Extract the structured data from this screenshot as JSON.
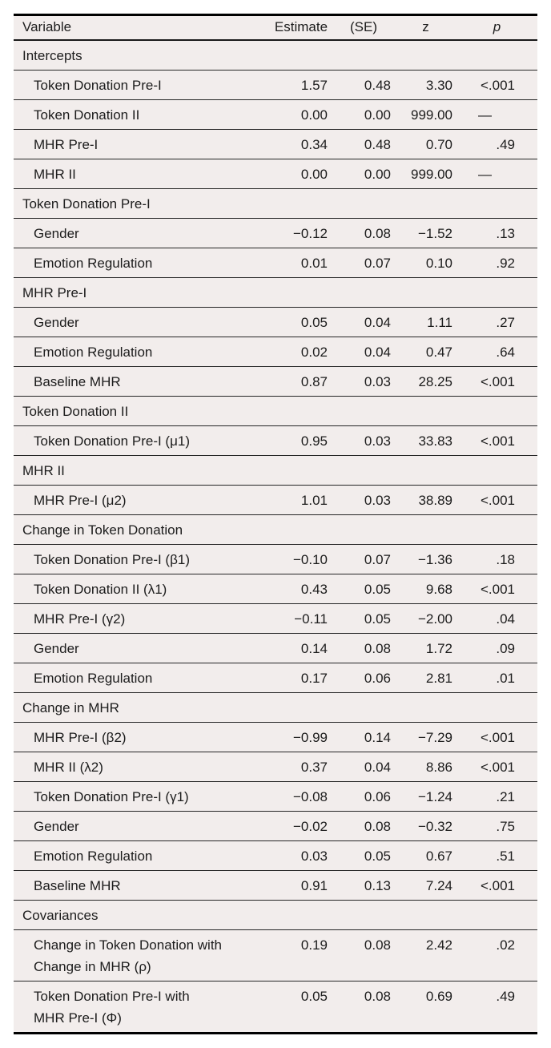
{
  "table": {
    "style": {
      "row_background": "#f2edec",
      "rule_color": "#000000",
      "separator_color": "#262626",
      "text_color": "#1c1c1c"
    },
    "columns": [
      {
        "key": "variable",
        "label": "Variable"
      },
      {
        "key": "estimate",
        "label": "Estimate"
      },
      {
        "key": "se",
        "label": "(SE)"
      },
      {
        "key": "z",
        "label": "z"
      },
      {
        "key": "p",
        "label": "p"
      }
    ],
    "rows": [
      {
        "type": "section",
        "label": "Intercepts"
      },
      {
        "type": "data",
        "label": "Token Donation Pre-I",
        "estimate": "1.57",
        "se": "0.48",
        "z": "3.30",
        "p": "<.001"
      },
      {
        "type": "data",
        "label": "Token Donation II",
        "estimate": "0.00",
        "se": "0.00",
        "z": "999.00",
        "p": "—"
      },
      {
        "type": "data",
        "label": "MHR Pre-I",
        "estimate": "0.34",
        "se": "0.48",
        "z": "0.70",
        "p": ".49"
      },
      {
        "type": "data",
        "label": "MHR II",
        "estimate": "0.00",
        "se": "0.00",
        "z": "999.00",
        "p": "—"
      },
      {
        "type": "section",
        "label": "Token Donation Pre-I"
      },
      {
        "type": "data",
        "label": "Gender",
        "estimate": "−0.12",
        "se": "0.08",
        "z": "−1.52",
        "p": ".13"
      },
      {
        "type": "data",
        "label": "Emotion Regulation",
        "estimate": "0.01",
        "se": "0.07",
        "z": "0.10",
        "p": ".92"
      },
      {
        "type": "section",
        "label": "MHR Pre-I"
      },
      {
        "type": "data",
        "label": "Gender",
        "estimate": "0.05",
        "se": "0.04",
        "z": "1.11",
        "p": ".27"
      },
      {
        "type": "data",
        "label": "Emotion Regulation",
        "estimate": "0.02",
        "se": "0.04",
        "z": "0.47",
        "p": ".64"
      },
      {
        "type": "data",
        "label": "Baseline MHR",
        "estimate": "0.87",
        "se": "0.03",
        "z": "28.25",
        "p": "<.001"
      },
      {
        "type": "section",
        "label": "Token Donation II"
      },
      {
        "type": "data",
        "label": "Token Donation Pre-I (μ1)",
        "estimate": "0.95",
        "se": "0.03",
        "z": "33.83",
        "p": "<.001"
      },
      {
        "type": "section",
        "label": "MHR II"
      },
      {
        "type": "data",
        "label": "MHR Pre-I (μ2)",
        "estimate": "1.01",
        "se": "0.03",
        "z": "38.89",
        "p": "<.001"
      },
      {
        "type": "section",
        "label": "Change in Token Donation"
      },
      {
        "type": "data",
        "label": "Token Donation Pre-I (β1)",
        "estimate": "−0.10",
        "se": "0.07",
        "z": "−1.36",
        "p": ".18"
      },
      {
        "type": "data",
        "label": "Token Donation II (λ1)",
        "estimate": "0.43",
        "se": "0.05",
        "z": "9.68",
        "p": "<.001"
      },
      {
        "type": "data",
        "label": "MHR Pre-I (γ2)",
        "estimate": "−0.11",
        "se": "0.05",
        "z": "−2.00",
        "p": ".04"
      },
      {
        "type": "data",
        "label": "Gender",
        "estimate": "0.14",
        "se": "0.08",
        "z": "1.72",
        "p": ".09"
      },
      {
        "type": "data",
        "label": "Emotion Regulation",
        "estimate": "0.17",
        "se": "0.06",
        "z": "2.81",
        "p": ".01"
      },
      {
        "type": "section",
        "label": "Change in MHR"
      },
      {
        "type": "data",
        "label": "MHR Pre-I (β2)",
        "estimate": "−0.99",
        "se": "0.14",
        "z": "−7.29",
        "p": "<.001"
      },
      {
        "type": "data",
        "label": "MHR II (λ2)",
        "estimate": "0.37",
        "se": "0.04",
        "z": "8.86",
        "p": "<.001"
      },
      {
        "type": "data",
        "label": "Token Donation Pre-I (γ1)",
        "estimate": "−0.08",
        "se": "0.06",
        "z": "−1.24",
        "p": ".21"
      },
      {
        "type": "data",
        "label": "Gender",
        "estimate": "−0.02",
        "se": "0.08",
        "z": "−0.32",
        "p": ".75"
      },
      {
        "type": "data",
        "label": "Emotion Regulation",
        "estimate": "0.03",
        "se": "0.05",
        "z": "0.67",
        "p": ".51"
      },
      {
        "type": "data",
        "label": "Baseline MHR",
        "estimate": "0.91",
        "se": "0.13",
        "z": "7.24",
        "p": "<.001"
      },
      {
        "type": "section",
        "label": "Covariances"
      },
      {
        "type": "data",
        "label": "Change in Token Donation with\nChange in MHR (ρ)",
        "estimate": "0.19",
        "se": "0.08",
        "z": "2.42",
        "p": ".02"
      },
      {
        "type": "data",
        "label": "Token Donation Pre-I with\nMHR Pre-I (Φ)",
        "estimate": "0.05",
        "se": "0.08",
        "z": "0.69",
        "p": ".49"
      }
    ]
  }
}
